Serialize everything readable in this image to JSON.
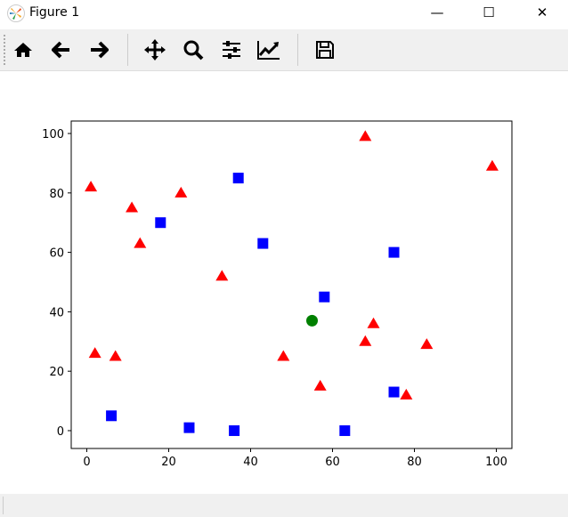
{
  "window": {
    "title": "Figure 1",
    "minimize": "—",
    "maximize": "☐",
    "close": "✕"
  },
  "toolbar": {
    "buttons": [
      "home-icon",
      "back-icon",
      "forward-icon",
      "pan-icon",
      "zoom-icon",
      "configure-subplots-icon",
      "edit-axes-icon",
      "save-icon"
    ]
  },
  "chart_data": {
    "type": "scatter",
    "xlim": [
      -3.8,
      103.8
    ],
    "ylim": [
      -6,
      104.2
    ],
    "xticks": [
      0,
      20,
      40,
      60,
      80,
      100
    ],
    "yticks": [
      0,
      20,
      40,
      60,
      80,
      100
    ],
    "grid": false,
    "series": [
      {
        "marker": "triangle",
        "color": "#ff0000",
        "points": [
          [
            1,
            82
          ],
          [
            2,
            26
          ],
          [
            7,
            25
          ],
          [
            11,
            75
          ],
          [
            13,
            63
          ],
          [
            23,
            80
          ],
          [
            33,
            52
          ],
          [
            48,
            25
          ],
          [
            57,
            15
          ],
          [
            68,
            99
          ],
          [
            68,
            30
          ],
          [
            70,
            36
          ],
          [
            78,
            12
          ],
          [
            83,
            29
          ],
          [
            99,
            89
          ]
        ]
      },
      {
        "marker": "square",
        "color": "#0000ff",
        "points": [
          [
            6,
            5
          ],
          [
            18,
            70
          ],
          [
            25,
            1
          ],
          [
            36,
            0
          ],
          [
            37,
            85
          ],
          [
            43,
            63
          ],
          [
            58,
            45
          ],
          [
            63,
            0
          ],
          [
            75,
            60
          ],
          [
            75,
            13
          ]
        ]
      },
      {
        "marker": "circle",
        "color": "#008000",
        "points": [
          [
            55,
            37
          ]
        ]
      }
    ]
  }
}
